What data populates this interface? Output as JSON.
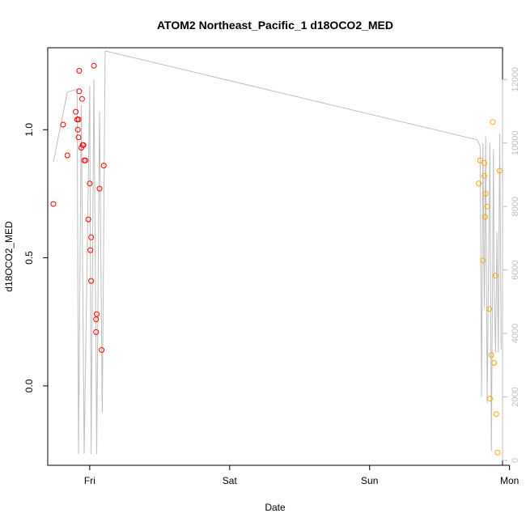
{
  "chart_data": {
    "type": "scatter",
    "title": "ATOM2 Northeast_Pacific_1 d18OCO2_MED",
    "xlabel": "Date",
    "ylabel": "d18OCO2_MED",
    "x_tick_labels": [
      "Fri",
      "Sat",
      "Sun",
      "Mon"
    ],
    "y_ticks": [
      "0.0",
      "0.5",
      "1.0"
    ],
    "y2_ticks": [
      "0",
      "2000",
      "4000",
      "6000",
      "8000",
      "10000",
      "12000"
    ],
    "xlim_days": [
      -0.3,
      2.95
    ],
    "ylim": [
      -0.31,
      1.32
    ],
    "y2lim": [
      -155,
      13000
    ],
    "grid": false,
    "colors": {
      "series1": "#ff0000",
      "series2": "#ffa500",
      "line": "#bebebe",
      "axis": "#000000",
      "axis2": "#bebebe"
    },
    "series": [
      {
        "color": "#ff0000",
        "points": [
          [
            -0.26,
            0.71
          ],
          [
            -0.19,
            1.02
          ],
          [
            -0.16,
            0.9
          ],
          [
            -0.1,
            1.07
          ],
          [
            -0.09,
            1.04
          ],
          [
            -0.085,
            1.0
          ],
          [
            -0.08,
            1.04
          ],
          [
            -0.08,
            0.97
          ],
          [
            -0.075,
            1.23
          ],
          [
            -0.075,
            1.15
          ],
          [
            -0.06,
            0.93
          ],
          [
            -0.055,
            1.12
          ],
          [
            -0.05,
            0.94
          ],
          [
            -0.045,
            0.94
          ],
          [
            -0.04,
            0.88
          ],
          [
            -0.03,
            0.88
          ],
          [
            -0.01,
            0.65
          ],
          [
            0.0,
            0.79
          ],
          [
            0.005,
            0.53
          ],
          [
            0.01,
            0.58
          ],
          [
            0.01,
            0.41
          ],
          [
            0.03,
            1.25
          ],
          [
            0.045,
            0.21
          ],
          [
            0.045,
            0.26
          ],
          [
            0.05,
            0.28
          ],
          [
            0.07,
            0.77
          ],
          [
            0.085,
            0.14
          ],
          [
            0.1,
            0.86
          ]
        ]
      },
      {
        "color": "#ffa500",
        "points": [
          [
            2.78,
            0.79
          ],
          [
            2.79,
            0.88
          ],
          [
            2.81,
            0.49
          ],
          [
            2.82,
            0.87
          ],
          [
            2.82,
            0.82
          ],
          [
            2.825,
            0.66
          ],
          [
            2.83,
            0.75
          ],
          [
            2.84,
            0.7
          ],
          [
            2.855,
            0.3
          ],
          [
            2.86,
            -0.05
          ],
          [
            2.87,
            0.12
          ],
          [
            2.88,
            1.03
          ],
          [
            2.89,
            0.09
          ],
          [
            2.9,
            0.43
          ],
          [
            2.905,
            -0.11
          ],
          [
            2.915,
            -0.26
          ],
          [
            2.93,
            0.84
          ]
        ]
      }
    ],
    "line_series": {
      "color": "#bebebe",
      "points": [
        [
          -0.26,
          9400
        ],
        [
          -0.16,
          11600
        ],
        [
          -0.09,
          11700
        ],
        [
          -0.08,
          200
        ],
        [
          -0.06,
          11200
        ],
        [
          -0.04,
          200
        ],
        [
          0.0,
          11800
        ],
        [
          0.01,
          200
        ],
        [
          0.03,
          12000
        ],
        [
          0.05,
          200
        ],
        [
          0.07,
          11000
        ],
        [
          0.09,
          1500
        ],
        [
          0.11,
          12900
        ],
        [
          2.77,
          10100
        ],
        [
          2.79,
          9900
        ],
        [
          2.8,
          2000
        ],
        [
          2.81,
          10000
        ],
        [
          2.82,
          4800
        ],
        [
          2.83,
          10200
        ],
        [
          2.84,
          1800
        ],
        [
          2.86,
          10000
        ],
        [
          2.87,
          300
        ],
        [
          2.885,
          9800
        ],
        [
          2.89,
          5500
        ],
        [
          2.9,
          3400
        ],
        [
          2.91,
          7200
        ],
        [
          2.92,
          3400
        ],
        [
          2.93,
          10300
        ],
        [
          2.94,
          3500
        ]
      ]
    }
  }
}
